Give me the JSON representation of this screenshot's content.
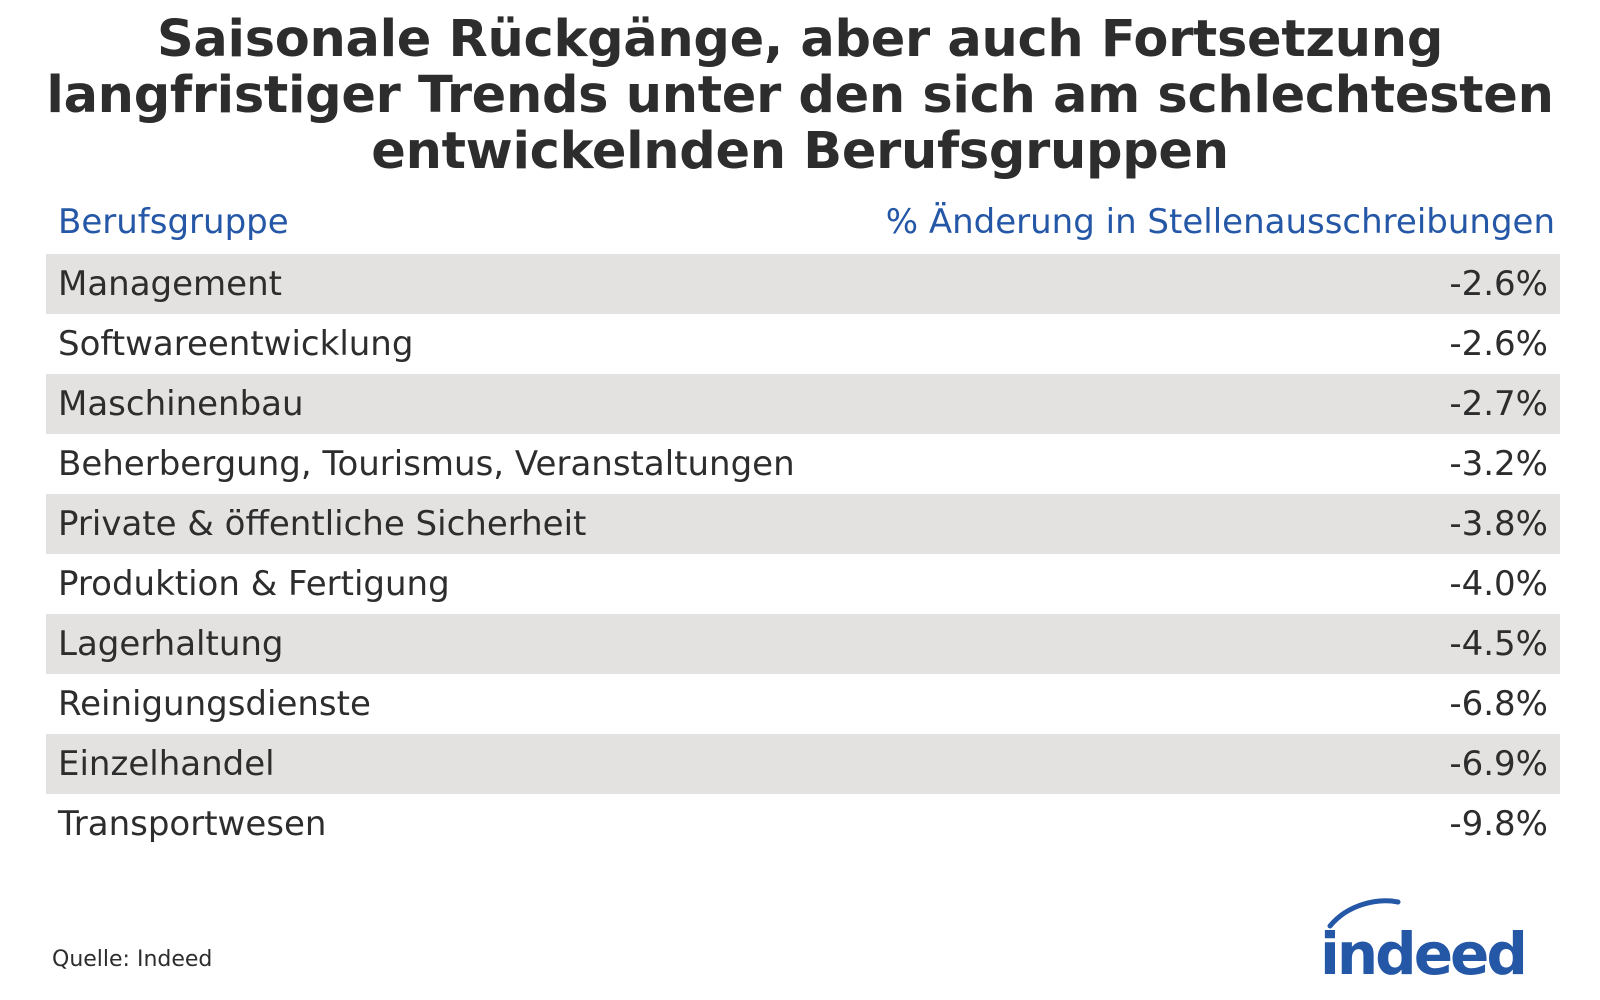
{
  "title": "Saisonale Rückgänge, aber auch Fortsetzung langfristiger Trends unter den sich am schlechtesten entwickelnden Berufsgruppen",
  "title_lines": [
    "Saisonale Rückgänge, aber auch Fortsetzung",
    "langfristiger Trends unter den sich am schlechtesten",
    "entwickelnden Berufsgruppen"
  ],
  "colors": {
    "header_text": "#2557a7",
    "row_shade": "#e4e2e0",
    "text": "#2d2d2d",
    "brand": "#2557a7"
  },
  "chart_data": {
    "type": "table",
    "columns": [
      "Berufsgruppe",
      "% Änderung in Stellenausschreibungen"
    ],
    "rows": [
      {
        "category": "Management",
        "value": -2.6,
        "display": "-2.6%"
      },
      {
        "category": "Softwareentwicklung",
        "value": -2.6,
        "display": "-2.6%"
      },
      {
        "category": "Maschinenbau",
        "value": -2.7,
        "display": "-2.7%"
      },
      {
        "category": "Beherbergung, Tourismus, Veranstaltungen",
        "value": -3.2,
        "display": "-3.2%"
      },
      {
        "category": "Private & öffentliche Sicherheit",
        "value": -3.8,
        "display": "-3.8%"
      },
      {
        "category": "Produktion & Fertigung",
        "value": -4.0,
        "display": "-4.0%"
      },
      {
        "category": "Lagerhaltung",
        "value": -4.5,
        "display": "-4.5%"
      },
      {
        "category": "Reinigungsdienste",
        "value": -6.8,
        "display": "-6.8%"
      },
      {
        "category": "Einzelhandel",
        "value": -6.9,
        "display": "-6.9%"
      },
      {
        "category": "Transportwesen",
        "value": -9.8,
        "display": "-9.8%"
      }
    ]
  },
  "source": "Quelle: Indeed",
  "logo": {
    "text": "indeed",
    "icon": "indeed-logo"
  }
}
